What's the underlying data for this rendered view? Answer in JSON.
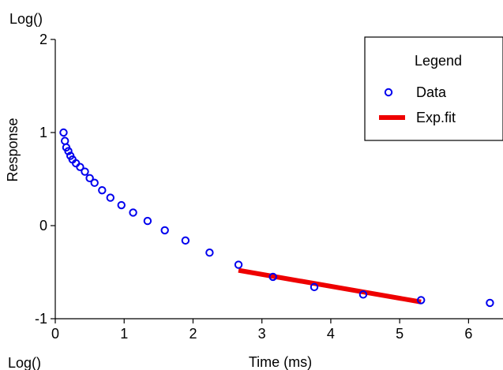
{
  "chart_data": {
    "type": "scatter",
    "title": "",
    "xlabel": "Time (ms)",
    "ylabel": "Response",
    "y_scale_label": "Log()",
    "y_scale_label_bottom": "Log()",
    "xlim": [
      0,
      6.5
    ],
    "ylim": [
      -1,
      2
    ],
    "x_ticks": [
      0,
      1,
      2,
      3,
      4,
      5,
      6
    ],
    "y_ticks": [
      -1,
      0,
      1,
      2
    ],
    "grid": false,
    "legend_position": "top-right",
    "legend": {
      "title": "Legend",
      "items": [
        "Data",
        "Exp.fit"
      ]
    },
    "series": [
      {
        "name": "Data",
        "type": "scatter",
        "color": "#0000ee",
        "marker": "open-circle",
        "x": [
          0.12,
          0.14,
          0.16,
          0.19,
          0.22,
          0.25,
          0.3,
          0.36,
          0.43,
          0.5,
          0.57,
          0.68,
          0.8,
          0.96,
          1.13,
          1.34,
          1.59,
          1.89,
          2.24,
          2.66,
          3.16,
          3.76,
          4.47,
          5.31,
          6.31
        ],
        "y": [
          1.0,
          0.91,
          0.84,
          0.8,
          0.75,
          0.71,
          0.67,
          0.63,
          0.58,
          0.51,
          0.46,
          0.38,
          0.3,
          0.22,
          0.14,
          0.05,
          -0.05,
          -0.16,
          -0.29,
          -0.42,
          -0.55,
          -0.66,
          -0.74,
          -0.8,
          -0.83
        ]
      },
      {
        "name": "Exp.fit",
        "type": "line",
        "color": "#ee0000",
        "x": [
          2.66,
          5.31
        ],
        "y": [
          -0.48,
          -0.82
        ]
      }
    ]
  }
}
